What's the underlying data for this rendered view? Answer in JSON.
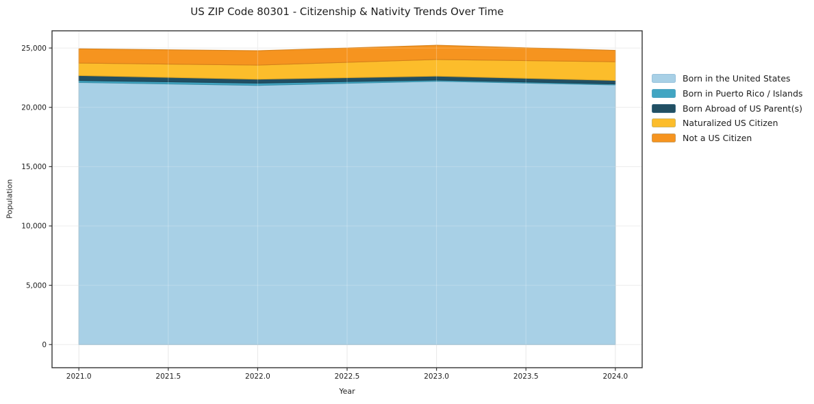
{
  "figure": {
    "title": "US ZIP Code 80301 - Citizenship & Nativity Trends Over Time",
    "xlabel": "Year",
    "ylabel": "Population"
  },
  "chart_data": {
    "type": "area",
    "stacked": true,
    "title": "US ZIP Code 80301 - Citizenship & Nativity Trends Over Time",
    "xlabel": "Year",
    "ylabel": "Population",
    "x": [
      2021,
      2022,
      2023,
      2024
    ],
    "series": [
      {
        "name": "Born in the United States",
        "color": "#a8d0e6",
        "values": [
          22100,
          21850,
          22200,
          21890
        ]
      },
      {
        "name": "Born in Puerto Rico / Islands",
        "color": "#41a5c2",
        "values": [
          160,
          190,
          100,
          80
        ]
      },
      {
        "name": "Born Abroad of US Parent(s)",
        "color": "#214f63",
        "values": [
          420,
          330,
          330,
          300
        ]
      },
      {
        "name": "Naturalized US Citizen",
        "color": "#fcbd2b",
        "values": [
          1050,
          1190,
          1400,
          1570
        ]
      },
      {
        "name": "Not a US Citizen",
        "color": "#f6941f",
        "values": [
          1200,
          1210,
          1200,
          960
        ]
      }
    ],
    "stack_totals": [
      24930,
      24770,
      25230,
      24800
    ],
    "xlim": [
      2020.85,
      2024.15
    ],
    "ylim": [
      -1950,
      26450
    ],
    "xticks": {
      "values": [
        2021.0,
        2021.5,
        2022.0,
        2022.5,
        2023.0,
        2023.5,
        2024.0
      ],
      "labels": [
        "2021.0",
        "2021.5",
        "2022.0",
        "2022.5",
        "2023.0",
        "2023.5",
        "2024.0"
      ]
    },
    "yticks": {
      "values": [
        0,
        5000,
        10000,
        15000,
        20000,
        25000
      ],
      "labels": [
        "0",
        "5,000",
        "10,000",
        "15,000",
        "20,000",
        "25,000"
      ]
    },
    "grid": true,
    "legend_position": "right of plot, vertical",
    "colors": {
      "background": "#ffffff",
      "grid": "#e7e7e7",
      "frame": "#333333",
      "tick_text": "#1c1c1c"
    }
  }
}
